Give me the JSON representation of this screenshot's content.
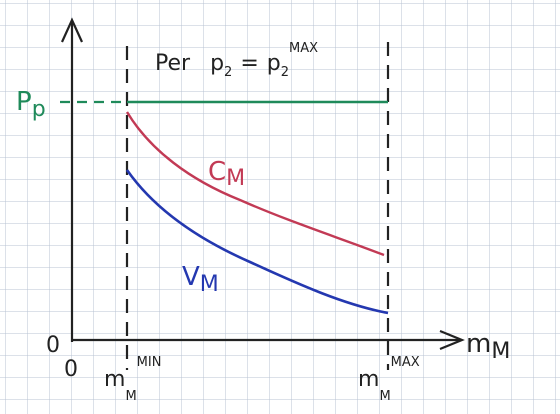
{
  "header": {
    "condition": {
      "prefix": "Per",
      "lhs": {
        "base": "p",
        "sub": "2"
      },
      "eq": "=",
      "rhs": {
        "base": "p",
        "sub": "2",
        "sup": "MAX"
      }
    }
  },
  "labels": {
    "y_level": {
      "base": "P",
      "sub": "p"
    },
    "upper_curve": {
      "base": "C",
      "sub": "M"
    },
    "lower_curve": {
      "base": "V",
      "sub": "M"
    },
    "y_origin": "0",
    "x_origin": "0",
    "x_min": {
      "base": "m",
      "sub": "M",
      "sup": "MIN"
    },
    "x_max": {
      "base": "m",
      "sub": "M",
      "sup": "MAX"
    },
    "x_axis": {
      "base": "m",
      "sub": "M"
    }
  }
}
